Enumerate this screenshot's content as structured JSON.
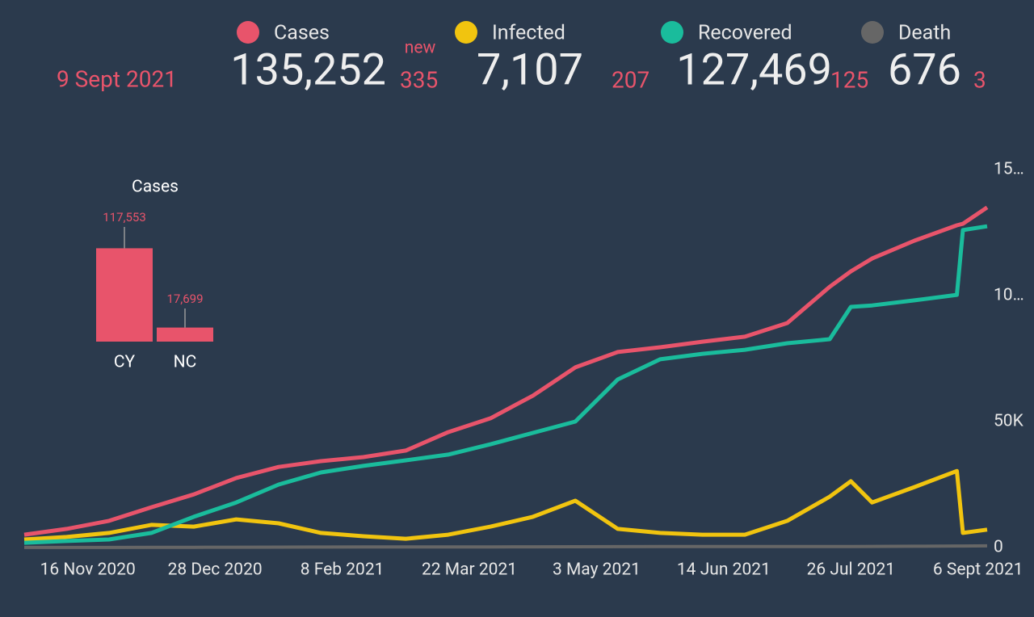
{
  "header": {
    "date": "9 Sept 2021",
    "new_label": "new",
    "totals": [
      "135,252",
      "7,107",
      "127,469",
      "676"
    ],
    "new": [
      335,
      207,
      125,
      3
    ]
  },
  "chart_data": [
    {
      "type": "line",
      "x": [
        "2020-10-26",
        "2020-11-09",
        "2020-11-23",
        "2020-12-07",
        "2020-12-21",
        "2021-01-04",
        "2021-01-18",
        "2021-02-01",
        "2021-02-15",
        "2021-03-01",
        "2021-03-15",
        "2021-03-29",
        "2021-04-12",
        "2021-04-26",
        "2021-05-10",
        "2021-05-24",
        "2021-06-07",
        "2021-06-21",
        "2021-07-05",
        "2021-07-19",
        "2021-07-26",
        "2021-08-02",
        "2021-08-16",
        "2021-08-30",
        "2021-09-01",
        "2021-09-09"
      ],
      "series": [
        {
          "name": "Cases",
          "color": "#e8546b",
          "values": [
            5100,
            7400,
            10600,
            16000,
            21100,
            27600,
            32000,
            34300,
            35900,
            38500,
            45800,
            51300,
            60300,
            71500,
            77600,
            79500,
            81700,
            83700,
            89100,
            103500,
            109600,
            114700,
            121800,
            127900,
            128500,
            135000
          ]
        },
        {
          "name": "Infected",
          "color": "#f1c40f",
          "values": [
            3200,
            4200,
            5800,
            9000,
            8300,
            11200,
            9600,
            5800,
            4500,
            3500,
            5100,
            8300,
            12200,
            18600,
            7400,
            5800,
            5100,
            5100,
            10600,
            20200,
            26300,
            17900,
            24000,
            30400,
            5800,
            7100
          ]
        },
        {
          "name": "Recovered",
          "color": "#1abc9c",
          "values": [
            1900,
            2600,
            3200,
            5800,
            12200,
            17900,
            25000,
            29800,
            32400,
            34600,
            36900,
            41000,
            45500,
            50000,
            66700,
            74700,
            76900,
            78500,
            81100,
            82700,
            95500,
            96100,
            98100,
            100300,
            126000,
            127500
          ]
        },
        {
          "name": "Death",
          "color": "#666666",
          "values": [
            25,
            30,
            40,
            60,
            90,
            130,
            170,
            200,
            220,
            235,
            250,
            270,
            300,
            330,
            360,
            380,
            390,
            395,
            400,
            420,
            430,
            450,
            510,
            600,
            620,
            676
          ]
        }
      ],
      "xlim": [
        "2020-10-26",
        "2021-09-09"
      ],
      "xticks": [
        {
          "value": "2020-11-16",
          "label": "16 Nov 2020"
        },
        {
          "value": "2020-12-28",
          "label": "28 Dec 2020"
        },
        {
          "value": "2021-02-08",
          "label": "8 Feb 2021"
        },
        {
          "value": "2021-03-22",
          "label": "22 Mar 2021"
        },
        {
          "value": "2021-05-03",
          "label": "3 May 2021"
        },
        {
          "value": "2021-06-14",
          "label": "14 Jun 2021"
        },
        {
          "value": "2021-07-26",
          "label": "26 Jul 2021"
        },
        {
          "value": "2021-09-06",
          "label": "6 Sept 2021"
        }
      ],
      "ylim": [
        0,
        150000
      ],
      "yticks": [
        0,
        {
          "value": 50000,
          "label": "50K"
        },
        {
          "value": 100000,
          "label": "10…"
        },
        {
          "value": 150000,
          "label": "15…"
        }
      ]
    },
    {
      "type": "bar",
      "title": "Cases",
      "categories": [
        "CY",
        "NC"
      ],
      "values": [
        117553,
        17699
      ],
      "value_labels": [
        "117,553",
        "17,699"
      ],
      "color": "#e8546b",
      "ylim": [
        0,
        120000
      ]
    }
  ]
}
